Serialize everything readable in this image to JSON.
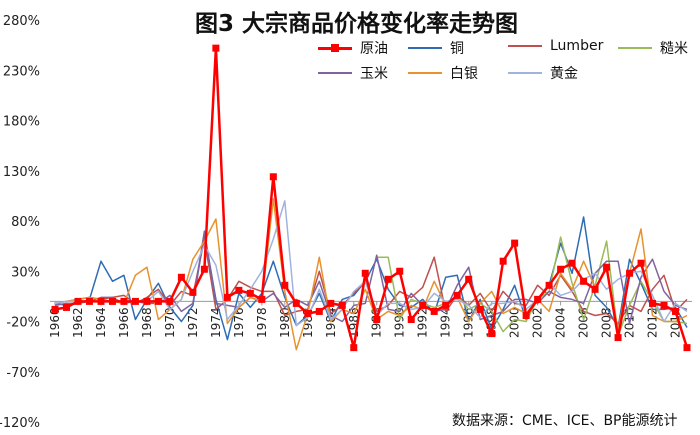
{
  "title": "图3 大宗商品价格变化率走势图",
  "source": "数据来源：CME、ICE、BP能源统计",
  "chart_data": {
    "type": "line",
    "title": "图3 大宗商品价格变化率走势图",
    "xlabel": "",
    "ylabel": "",
    "ylim": [
      -120,
      280
    ],
    "yticks": [
      "-120%",
      "-70%",
      "-20%",
      "30%",
      "80%",
      "130%",
      "180%",
      "230%",
      "280%"
    ],
    "ytick_values": [
      -120,
      -70,
      -20,
      30,
      80,
      130,
      180,
      230,
      280
    ],
    "xtick_labels": [
      "1960",
      "1962",
      "1964",
      "1966",
      "1968",
      "1970",
      "1972",
      "1974",
      "1976",
      "1978",
      "1980",
      "1982",
      "1984",
      "1986",
      "1988",
      "1990",
      "1992",
      "1994",
      "1996",
      "1998",
      "2000",
      "2002",
      "2004",
      "2006",
      "2008",
      "2010",
      "2012",
      "2014"
    ],
    "x": [
      1960,
      1961,
      1962,
      1963,
      1964,
      1965,
      1966,
      1967,
      1968,
      1969,
      1970,
      1971,
      1972,
      1973,
      1974,
      1975,
      1976,
      1977,
      1978,
      1979,
      1980,
      1981,
      1982,
      1983,
      1984,
      1985,
      1986,
      1987,
      1988,
      1989,
      1990,
      1991,
      1992,
      1993,
      1994,
      1995,
      1996,
      1997,
      1998,
      1999,
      2000,
      2001,
      2002,
      2003,
      2004,
      2005,
      2006,
      2007,
      2008,
      2009,
      2010,
      2011,
      2012,
      2013,
      2014,
      2015
    ],
    "grid": false,
    "legend": "top-right",
    "series": [
      {
        "name": "原油",
        "color": "#ff0000",
        "marker": "square",
        "width": 2.5,
        "values": [
          -8,
          -6,
          0,
          0,
          0,
          0,
          0,
          0,
          0,
          0,
          0,
          24,
          9,
          32,
          252,
          4,
          11,
          8,
          2,
          124,
          16,
          -2,
          -12,
          -10,
          -2,
          -4,
          -46,
          28,
          -18,
          22,
          30,
          -18,
          -4,
          -10,
          -4,
          6,
          22,
          -8,
          -32,
          40,
          58,
          -14,
          2,
          16,
          32,
          38,
          20,
          12,
          34,
          -36,
          28,
          38,
          -2,
          -4,
          -10,
          -46
        ]
      },
      {
        "name": "铜",
        "color": "#2e6db4",
        "width": 1.5,
        "values": [
          -2,
          -4,
          -2,
          2,
          40,
          20,
          26,
          -18,
          2,
          18,
          -6,
          -20,
          -4,
          68,
          2,
          -38,
          8,
          -6,
          8,
          40,
          4,
          -24,
          -14,
          8,
          -20,
          2,
          6,
          20,
          42,
          12,
          -4,
          -6,
          2,
          -12,
          24,
          26,
          -20,
          2,
          -28,
          -8,
          16,
          -18,
          2,
          16,
          58,
          28,
          84,
          6,
          -6,
          -26,
          42,
          18,
          -8,
          -8,
          -6,
          -26
        ]
      },
      {
        "name": "Lumber",
        "color": "#c0504d",
        "width": 1.5,
        "values": [
          -2,
          0,
          2,
          4,
          2,
          4,
          6,
          -2,
          4,
          12,
          -4,
          10,
          6,
          62,
          -8,
          2,
          20,
          14,
          10,
          10,
          -14,
          -10,
          -8,
          30,
          -12,
          -4,
          8,
          20,
          -10,
          -4,
          10,
          4,
          14,
          44,
          -10,
          6,
          -4,
          8,
          -10,
          10,
          -2,
          -4,
          16,
          6,
          26,
          10,
          -10,
          -14,
          -12,
          -22,
          -4,
          -10,
          12,
          26,
          -10,
          2
        ]
      },
      {
        "name": "糙米",
        "color": "#9bbb59",
        "width": 1.5,
        "values": [
          null,
          null,
          null,
          null,
          null,
          null,
          null,
          null,
          null,
          null,
          null,
          null,
          null,
          null,
          null,
          null,
          null,
          null,
          null,
          null,
          null,
          null,
          null,
          null,
          null,
          null,
          null,
          null,
          44,
          44,
          -18,
          2,
          -2,
          -6,
          -2,
          6,
          -8,
          -2,
          -10,
          -30,
          -18,
          -20,
          2,
          10,
          64,
          18,
          -18,
          16,
          60,
          -34,
          -4,
          20,
          0,
          -20,
          -20,
          -22
        ]
      },
      {
        "name": "玉米",
        "color": "#8064a2",
        "width": 1.5,
        "values": [
          -4,
          -2,
          -2,
          0,
          4,
          4,
          -2,
          0,
          -2,
          -2,
          6,
          -10,
          -2,
          70,
          -2,
          -4,
          -6,
          4,
          0,
          8,
          -6,
          2,
          -4,
          20,
          -14,
          -20,
          -4,
          -2,
          46,
          -8,
          -10,
          8,
          -4,
          -10,
          -8,
          16,
          34,
          -18,
          -14,
          -10,
          2,
          2,
          -2,
          10,
          4,
          2,
          -2,
          28,
          40,
          40,
          -22,
          24,
          42,
          10,
          -4,
          -8
        ]
      },
      {
        "name": "白银",
        "color": "#e8922e",
        "width": 1.5,
        "values": [
          -2,
          0,
          2,
          4,
          2,
          0,
          -2,
          26,
          34,
          -18,
          -8,
          2,
          42,
          60,
          82,
          -22,
          -6,
          4,
          0,
          102,
          10,
          -48,
          -12,
          44,
          -20,
          -8,
          -12,
          12,
          -18,
          -10,
          -14,
          -4,
          -8,
          20,
          -4,
          4,
          -20,
          -2,
          10,
          -12,
          -6,
          -12,
          2,
          -10,
          28,
          12,
          40,
          14,
          32,
          -28,
          28,
          72,
          -14,
          -20,
          -20,
          -14
        ]
      },
      {
        "name": "黄金",
        "color": "#a0b3e0",
        "width": 1.5,
        "values": [
          -2,
          0,
          0,
          0,
          0,
          0,
          0,
          0,
          0,
          10,
          -8,
          2,
          30,
          56,
          36,
          -18,
          -4,
          12,
          30,
          62,
          100,
          -24,
          -16,
          12,
          -18,
          -8,
          10,
          20,
          -14,
          -2,
          -2,
          -8,
          -6,
          8,
          0,
          2,
          -4,
          -16,
          -2,
          -2,
          0,
          -8,
          2,
          18,
          6,
          10,
          22,
          28,
          12,
          22,
          28,
          30,
          6,
          -20,
          -2,
          -10
        ]
      }
    ]
  }
}
